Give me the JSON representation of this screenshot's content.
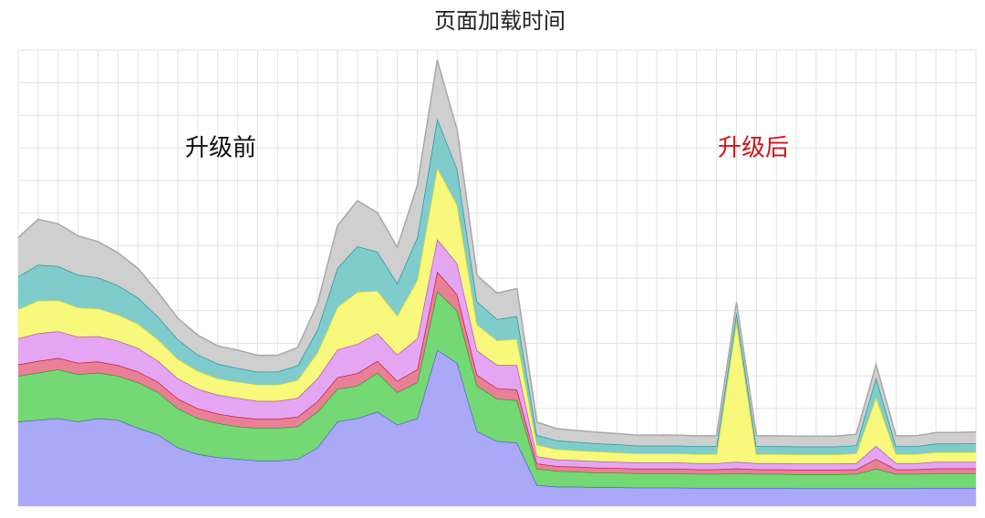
{
  "chart_data": {
    "type": "stacked-area",
    "title": "页面加载时间",
    "annotations": [
      {
        "text": "升级前",
        "color": "#111111"
      },
      {
        "text": "升级后",
        "color": "#d0141a"
      }
    ],
    "x": [
      0,
      1,
      2,
      3,
      4,
      5,
      6,
      7,
      8,
      9,
      10,
      11,
      12,
      13,
      14,
      15,
      16,
      17,
      18,
      19,
      20,
      21,
      22,
      23,
      24,
      25,
      26,
      27,
      28,
      29,
      30,
      31,
      32,
      33,
      34,
      35,
      36,
      37,
      38,
      39,
      40,
      41,
      42,
      43,
      44,
      45,
      46,
      47,
      48
    ],
    "xlim": [
      0,
      48
    ],
    "xticks": [
      0,
      1,
      2,
      3,
      4,
      5,
      6,
      7,
      8,
      9,
      10,
      11,
      12,
      13,
      14,
      15,
      16,
      17,
      18,
      19,
      20,
      21,
      22,
      23,
      24,
      25,
      26,
      27,
      28,
      29,
      30,
      31,
      32,
      33,
      34,
      35,
      36,
      37,
      38,
      39,
      40,
      41,
      42,
      43,
      44,
      45,
      46,
      47,
      48
    ],
    "ylim": [
      0,
      14
    ],
    "yticks": [
      0,
      1,
      2,
      3,
      4,
      5,
      6,
      7,
      8,
      9,
      10,
      11,
      12,
      13,
      14
    ],
    "grid": true,
    "series": [
      {
        "color": "#a9a9f7",
        "line_color": "#5a5ae0",
        "values": [
          2.6,
          2.65,
          2.7,
          2.6,
          2.7,
          2.65,
          2.4,
          2.2,
          1.8,
          1.6,
          1.5,
          1.45,
          1.4,
          1.4,
          1.45,
          1.8,
          2.6,
          2.7,
          2.9,
          2.5,
          2.7,
          4.8,
          4.4,
          2.3,
          2.0,
          1.95,
          0.65,
          0.6,
          0.6,
          0.58,
          0.58,
          0.57,
          0.57,
          0.57,
          0.56,
          0.56,
          0.56,
          0.56,
          0.56,
          0.55,
          0.55,
          0.55,
          0.55,
          0.55,
          0.55,
          0.55,
          0.56,
          0.56,
          0.56
        ]
      },
      {
        "color": "#74d874",
        "line_color": "#2e9e2e",
        "values": [
          1.4,
          1.45,
          1.5,
          1.45,
          1.4,
          1.35,
          1.4,
          1.3,
          1.2,
          1.1,
          1.05,
          1.0,
          1.0,
          1.0,
          1.0,
          1.1,
          1.0,
          1.0,
          1.2,
          1.0,
          1.1,
          1.8,
          1.6,
          1.4,
          1.3,
          1.3,
          0.5,
          0.48,
          0.46,
          0.45,
          0.45,
          0.44,
          0.44,
          0.44,
          0.43,
          0.43,
          0.45,
          0.43,
          0.43,
          0.43,
          0.43,
          0.43,
          0.44,
          0.6,
          0.44,
          0.44,
          0.45,
          0.45,
          0.45
        ]
      },
      {
        "color": "#ea8095",
        "line_color": "#c81e3c",
        "values": [
          0.35,
          0.36,
          0.35,
          0.35,
          0.34,
          0.33,
          0.33,
          0.32,
          0.3,
          0.3,
          0.29,
          0.29,
          0.28,
          0.28,
          0.29,
          0.32,
          0.36,
          0.38,
          0.36,
          0.35,
          0.4,
          0.6,
          0.5,
          0.33,
          0.32,
          0.33,
          0.16,
          0.15,
          0.15,
          0.15,
          0.14,
          0.14,
          0.14,
          0.14,
          0.14,
          0.14,
          0.15,
          0.14,
          0.14,
          0.14,
          0.14,
          0.14,
          0.14,
          0.3,
          0.14,
          0.14,
          0.15,
          0.15,
          0.15
        ]
      },
      {
        "color": "#e4a6f2",
        "line_color": "#b456c8",
        "values": [
          0.8,
          0.85,
          0.82,
          0.8,
          0.78,
          0.75,
          0.72,
          0.65,
          0.62,
          0.6,
          0.58,
          0.58,
          0.55,
          0.55,
          0.58,
          0.7,
          0.85,
          0.9,
          0.85,
          0.8,
          0.95,
          1.0,
          0.95,
          0.75,
          0.72,
          0.75,
          0.22,
          0.2,
          0.2,
          0.2,
          0.19,
          0.19,
          0.19,
          0.19,
          0.19,
          0.19,
          0.2,
          0.19,
          0.19,
          0.19,
          0.19,
          0.19,
          0.19,
          0.4,
          0.19,
          0.19,
          0.2,
          0.2,
          0.2
        ]
      },
      {
        "color": "#f8f87c",
        "line_color": "#d8d820",
        "values": [
          0.9,
          1.0,
          0.95,
          0.9,
          0.85,
          0.8,
          0.75,
          0.65,
          0.6,
          0.55,
          0.5,
          0.5,
          0.5,
          0.5,
          0.55,
          0.8,
          1.3,
          1.6,
          1.3,
          1.2,
          1.8,
          2.2,
          1.8,
          0.8,
          0.75,
          0.8,
          0.35,
          0.32,
          0.3,
          0.3,
          0.29,
          0.28,
          0.28,
          0.28,
          0.28,
          0.28,
          4.3,
          0.28,
          0.28,
          0.28,
          0.28,
          0.28,
          0.3,
          1.5,
          0.28,
          0.28,
          0.3,
          0.3,
          0.3
        ]
      },
      {
        "color": "#80cccc",
        "line_color": "#1e9a9e",
        "values": [
          1.0,
          1.1,
          1.05,
          1.0,
          0.95,
          0.9,
          0.8,
          0.7,
          0.6,
          0.5,
          0.45,
          0.42,
          0.4,
          0.4,
          0.45,
          0.7,
          1.2,
          1.4,
          1.2,
          1.0,
          1.3,
          1.5,
          1.1,
          0.7,
          0.65,
          0.7,
          0.3,
          0.27,
          0.26,
          0.25,
          0.25,
          0.24,
          0.24,
          0.24,
          0.24,
          0.24,
          0.3,
          0.24,
          0.24,
          0.24,
          0.24,
          0.24,
          0.25,
          0.6,
          0.24,
          0.24,
          0.26,
          0.26,
          0.27
        ]
      },
      {
        "color": "#cfcfcf",
        "line_color": "#a8a8a8",
        "values": [
          1.2,
          1.4,
          1.3,
          1.2,
          1.1,
          1.0,
          0.9,
          0.75,
          0.65,
          0.6,
          0.55,
          0.55,
          0.5,
          0.5,
          0.55,
          0.8,
          1.3,
          1.4,
          1.2,
          1.1,
          1.6,
          1.8,
          1.2,
          0.8,
          0.8,
          0.85,
          0.4,
          0.36,
          0.35,
          0.34,
          0.33,
          0.32,
          0.32,
          0.32,
          0.32,
          0.32,
          0.3,
          0.32,
          0.32,
          0.32,
          0.32,
          0.32,
          0.34,
          0.4,
          0.32,
          0.32,
          0.34,
          0.34,
          0.35
        ]
      }
    ]
  }
}
